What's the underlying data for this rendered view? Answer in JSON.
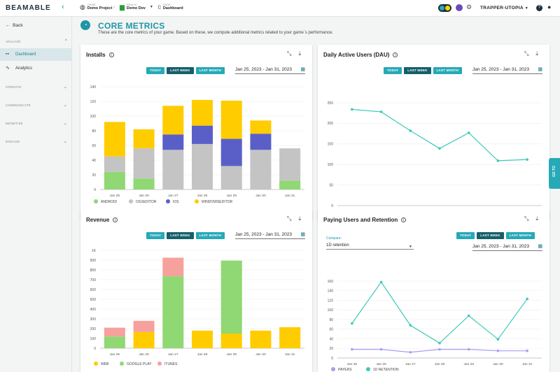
{
  "topbar": {
    "logo": "BEAMABLE",
    "game_label": "GAME",
    "game_value": "Demo Project",
    "realm_label": "REALM",
    "realm_value": "Demo Dev",
    "page_label": "PAGE",
    "page_value": "Dashboard",
    "user": "TRAPPER-UTOPIA"
  },
  "sidebar": {
    "back": "Back",
    "sections": [
      "ANALYZE",
      "OPERATE",
      "COMMUNICATE",
      "MONETIZE",
      "ENGAGE"
    ],
    "items": [
      {
        "label": "Dashboard",
        "icon": "grid-icon"
      },
      {
        "label": "Analytics",
        "icon": "trend-icon"
      }
    ]
  },
  "header": {
    "title": "CORE METRICS",
    "subtitle": "These are the core metrics of your game. Based on these, we compute additional metrics related to your game`s performance."
  },
  "buttons": {
    "today": "TODAY",
    "last_week": "LAST WEEK",
    "last_month": "LAST MONTH"
  },
  "date_range": "Jan 25, 2023 - Jan 31, 2023",
  "goto": "GO TO",
  "cards": {
    "installs": {
      "title": "Installs"
    },
    "dau": {
      "title": "Daily Active Users (DAU)"
    },
    "revenue": {
      "title": "Revenue"
    },
    "paying": {
      "title": "Paying Users and Retention",
      "compare_label": "Compare:",
      "compare_value": "1D retention"
    }
  },
  "chart_data": [
    {
      "id": "installs",
      "type": "bar",
      "stacked": true,
      "categories": [
        "Jan 25",
        "Jan 26",
        "Jan 27",
        "Jan 28",
        "Jan 29",
        "Jan 30",
        "Jan 31"
      ],
      "ylim": [
        0,
        140
      ],
      "yticks": [
        "0",
        "20",
        "40",
        "60",
        "80",
        "100",
        "120",
        "140"
      ],
      "series": [
        {
          "name": "ANDROID",
          "color": "#8fd873",
          "values": [
            24,
            15,
            0,
            0,
            0,
            0,
            12
          ]
        },
        {
          "name": "OSXEDITOR",
          "color": "#c4c4c4",
          "values": [
            21,
            41,
            54,
            62,
            32,
            54,
            44
          ]
        },
        {
          "name": "IOS",
          "color": "#5a5fc8",
          "values": [
            0,
            0,
            21,
            25,
            37,
            22,
            0
          ]
        },
        {
          "name": "WINDOWSEDITOR",
          "color": "#ffcc00",
          "values": [
            47,
            26,
            39,
            35,
            52,
            18,
            0
          ]
        }
      ]
    },
    {
      "id": "dau",
      "type": "line",
      "categories": [
        "Jan 25",
        "Jan 26",
        "Jan 27",
        "Jan 28",
        "Jan 29",
        "Jan 30",
        "Jan 31"
      ],
      "ylim": [
        0,
        250
      ],
      "yticks": [
        "0",
        "50",
        "100",
        "150",
        "200",
        "250"
      ],
      "series": [
        {
          "name": "",
          "color": "#3cc9b8",
          "values": [
            234,
            228,
            182,
            139,
            177,
            109,
            112
          ]
        }
      ]
    },
    {
      "id": "revenue",
      "type": "bar",
      "stacked": true,
      "categories": [
        "Jan 25",
        "Jan 26",
        "Jan 27",
        "Jan 28",
        "Jan 29",
        "Jan 30",
        "Jan 31"
      ],
      "ylim": [
        0,
        1000
      ],
      "yticks": [
        "0",
        "100",
        "200",
        "300",
        "400",
        "500",
        "600",
        "700",
        "800",
        "900",
        "1K"
      ],
      "series": [
        {
          "name": "WEB",
          "color": "#ffcc00",
          "values": [
            0,
            165,
            0,
            180,
            150,
            180,
            215
          ]
        },
        {
          "name": "GOOGLE PLAY",
          "color": "#8fd873",
          "values": [
            120,
            0,
            735,
            0,
            745,
            0,
            0
          ]
        },
        {
          "name": "ITUNES",
          "color": "#f7a19d",
          "values": [
            90,
            115,
            190,
            0,
            0,
            0,
            0
          ]
        }
      ]
    },
    {
      "id": "paying",
      "type": "line",
      "categories": [
        "Jan 25",
        "Jan 26",
        "Jan 27",
        "Jan 28",
        "Jan 29",
        "Jan 30",
        "Jan 31"
      ],
      "ylim": [
        0,
        160
      ],
      "yticks": [
        "0",
        "20",
        "40",
        "60",
        "80",
        "100",
        "120",
        "140",
        "160"
      ],
      "series": [
        {
          "name": "PAYERS",
          "color": "#a99df0",
          "values": [
            18,
            18,
            12,
            18,
            18,
            15,
            15
          ]
        },
        {
          "name": "1D RETENTION",
          "color": "#3cc9b8",
          "values": [
            72,
            158,
            68,
            31,
            88,
            39,
            123
          ]
        }
      ]
    }
  ]
}
